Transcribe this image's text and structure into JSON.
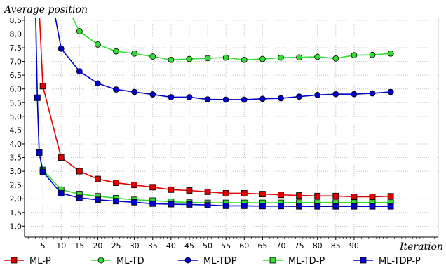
{
  "chart_data": {
    "type": "line",
    "title": "",
    "ylabel": "Average position",
    "xlabel": "Iteration",
    "xlim": [
      0,
      113
    ],
    "ylim": [
      0.6,
      8.6
    ],
    "grid": true,
    "legend_position": "bottom",
    "x_ticks": [
      5,
      10,
      15,
      20,
      25,
      30,
      35,
      40,
      45,
      50,
      55,
      60,
      65,
      70,
      75,
      80,
      85,
      90
    ],
    "y_ticks": [
      "1,0",
      "1,5",
      "2,0",
      "2,5",
      "3,0",
      "3,5",
      "4,0",
      "4,5",
      "5,0",
      "5,5",
      "6,0",
      "6,5",
      "7,0",
      "7,5",
      "8,0",
      "8,5"
    ],
    "series": [
      {
        "name": "ML-P",
        "color": "#e00000",
        "marker": "square",
        "x": [
          4,
          5,
          10,
          15,
          20,
          25,
          30,
          35,
          40,
          45,
          50,
          55,
          60,
          65,
          70,
          75,
          80,
          85,
          90,
          95,
          100
        ],
        "values": [
          8.9,
          6.1,
          3.5,
          3.0,
          2.72,
          2.58,
          2.5,
          2.42,
          2.33,
          2.3,
          2.25,
          2.2,
          2.2,
          2.17,
          2.14,
          2.12,
          2.1,
          2.1,
          2.07,
          2.07,
          2.09
        ]
      },
      {
        "name": "ML-TD",
        "color": "#33dd33",
        "marker": "circle",
        "x": [
          12,
          15,
          20,
          25,
          30,
          35,
          40,
          45,
          50,
          55,
          60,
          65,
          70,
          75,
          80,
          85,
          90,
          95,
          100
        ],
        "values": [
          8.9,
          8.1,
          7.62,
          7.37,
          7.29,
          7.18,
          7.06,
          7.09,
          7.12,
          7.14,
          7.06,
          7.09,
          7.14,
          7.15,
          7.17,
          7.11,
          7.23,
          7.24,
          7.29
        ]
      },
      {
        "name": "ML-TDP",
        "color": "#0000cc",
        "marker": "circle",
        "x": [
          8,
          10,
          15,
          20,
          25,
          30,
          35,
          40,
          45,
          50,
          55,
          60,
          65,
          70,
          75,
          80,
          85,
          90,
          95,
          100
        ],
        "values": [
          8.9,
          7.47,
          6.64,
          6.2,
          5.98,
          5.89,
          5.8,
          5.7,
          5.7,
          5.62,
          5.61,
          5.61,
          5.64,
          5.66,
          5.72,
          5.78,
          5.81,
          5.81,
          5.84,
          5.89
        ]
      },
      {
        "name": "ML-TD-P",
        "color": "#33dd33",
        "marker": "square",
        "x": [
          3,
          3.5,
          4,
          5,
          10,
          15,
          20,
          25,
          30,
          35,
          40,
          45,
          50,
          55,
          60,
          65,
          70,
          75,
          80,
          85,
          90,
          95,
          100
        ],
        "values": [
          8.9,
          5.68,
          3.68,
          3.05,
          2.33,
          2.17,
          2.09,
          2.02,
          1.96,
          1.93,
          1.89,
          1.86,
          1.85,
          1.85,
          1.85,
          1.85,
          1.85,
          1.86,
          1.86,
          1.86,
          1.86,
          1.86,
          1.86
        ]
      },
      {
        "name": "ML-TDP-P",
        "color": "#0000cc",
        "marker": "square",
        "x": [
          3,
          3.5,
          4,
          5,
          10,
          15,
          20,
          25,
          30,
          35,
          40,
          45,
          50,
          55,
          60,
          65,
          70,
          75,
          80,
          85,
          90,
          95,
          100
        ],
        "values": [
          8.9,
          5.68,
          3.68,
          2.98,
          2.2,
          2.03,
          1.96,
          1.91,
          1.87,
          1.82,
          1.8,
          1.79,
          1.77,
          1.74,
          1.74,
          1.73,
          1.73,
          1.72,
          1.72,
          1.72,
          1.72,
          1.72,
          1.72
        ]
      }
    ]
  }
}
